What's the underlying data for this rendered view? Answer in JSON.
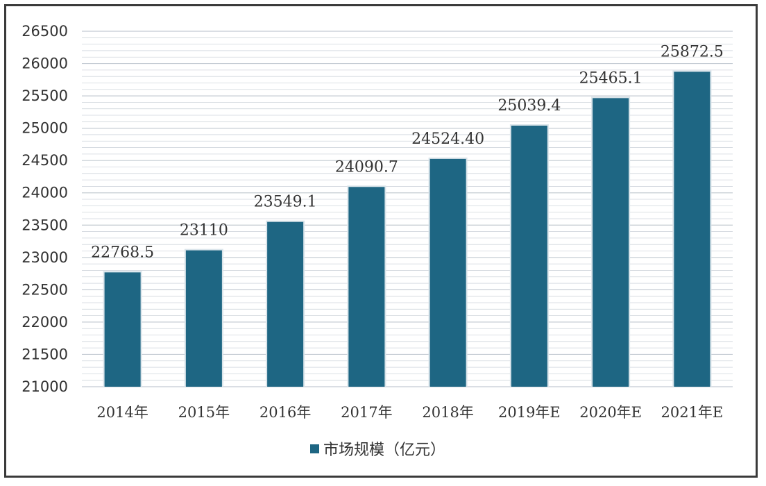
{
  "chart_data": {
    "type": "bar",
    "categories": [
      "2014年",
      "2015年",
      "2016年",
      "2017年",
      "2018年",
      "2019年E",
      "2020年E",
      "2021年E"
    ],
    "series": [
      {
        "name": "市场规模（亿元）",
        "values": [
          22768.5,
          23110,
          23549.1,
          24090.7,
          24524.4,
          25039.4,
          25465.1,
          25872.5
        ]
      }
    ],
    "data_labels": [
      "22768.5",
      "23110",
      "23549.1",
      "24090.7",
      "24524.40",
      "25039.4",
      "25465.1",
      "25872.5"
    ],
    "ylim": [
      21000,
      26500
    ],
    "yticks": [
      21000,
      21500,
      22000,
      22500,
      23000,
      23500,
      24000,
      24500,
      25000,
      25500,
      26000,
      26500
    ],
    "grid": true,
    "legend_position": "bottom",
    "colors": {
      "bar": "#1e6683",
      "grid": "#cfd5dc",
      "text": "#333333"
    }
  }
}
